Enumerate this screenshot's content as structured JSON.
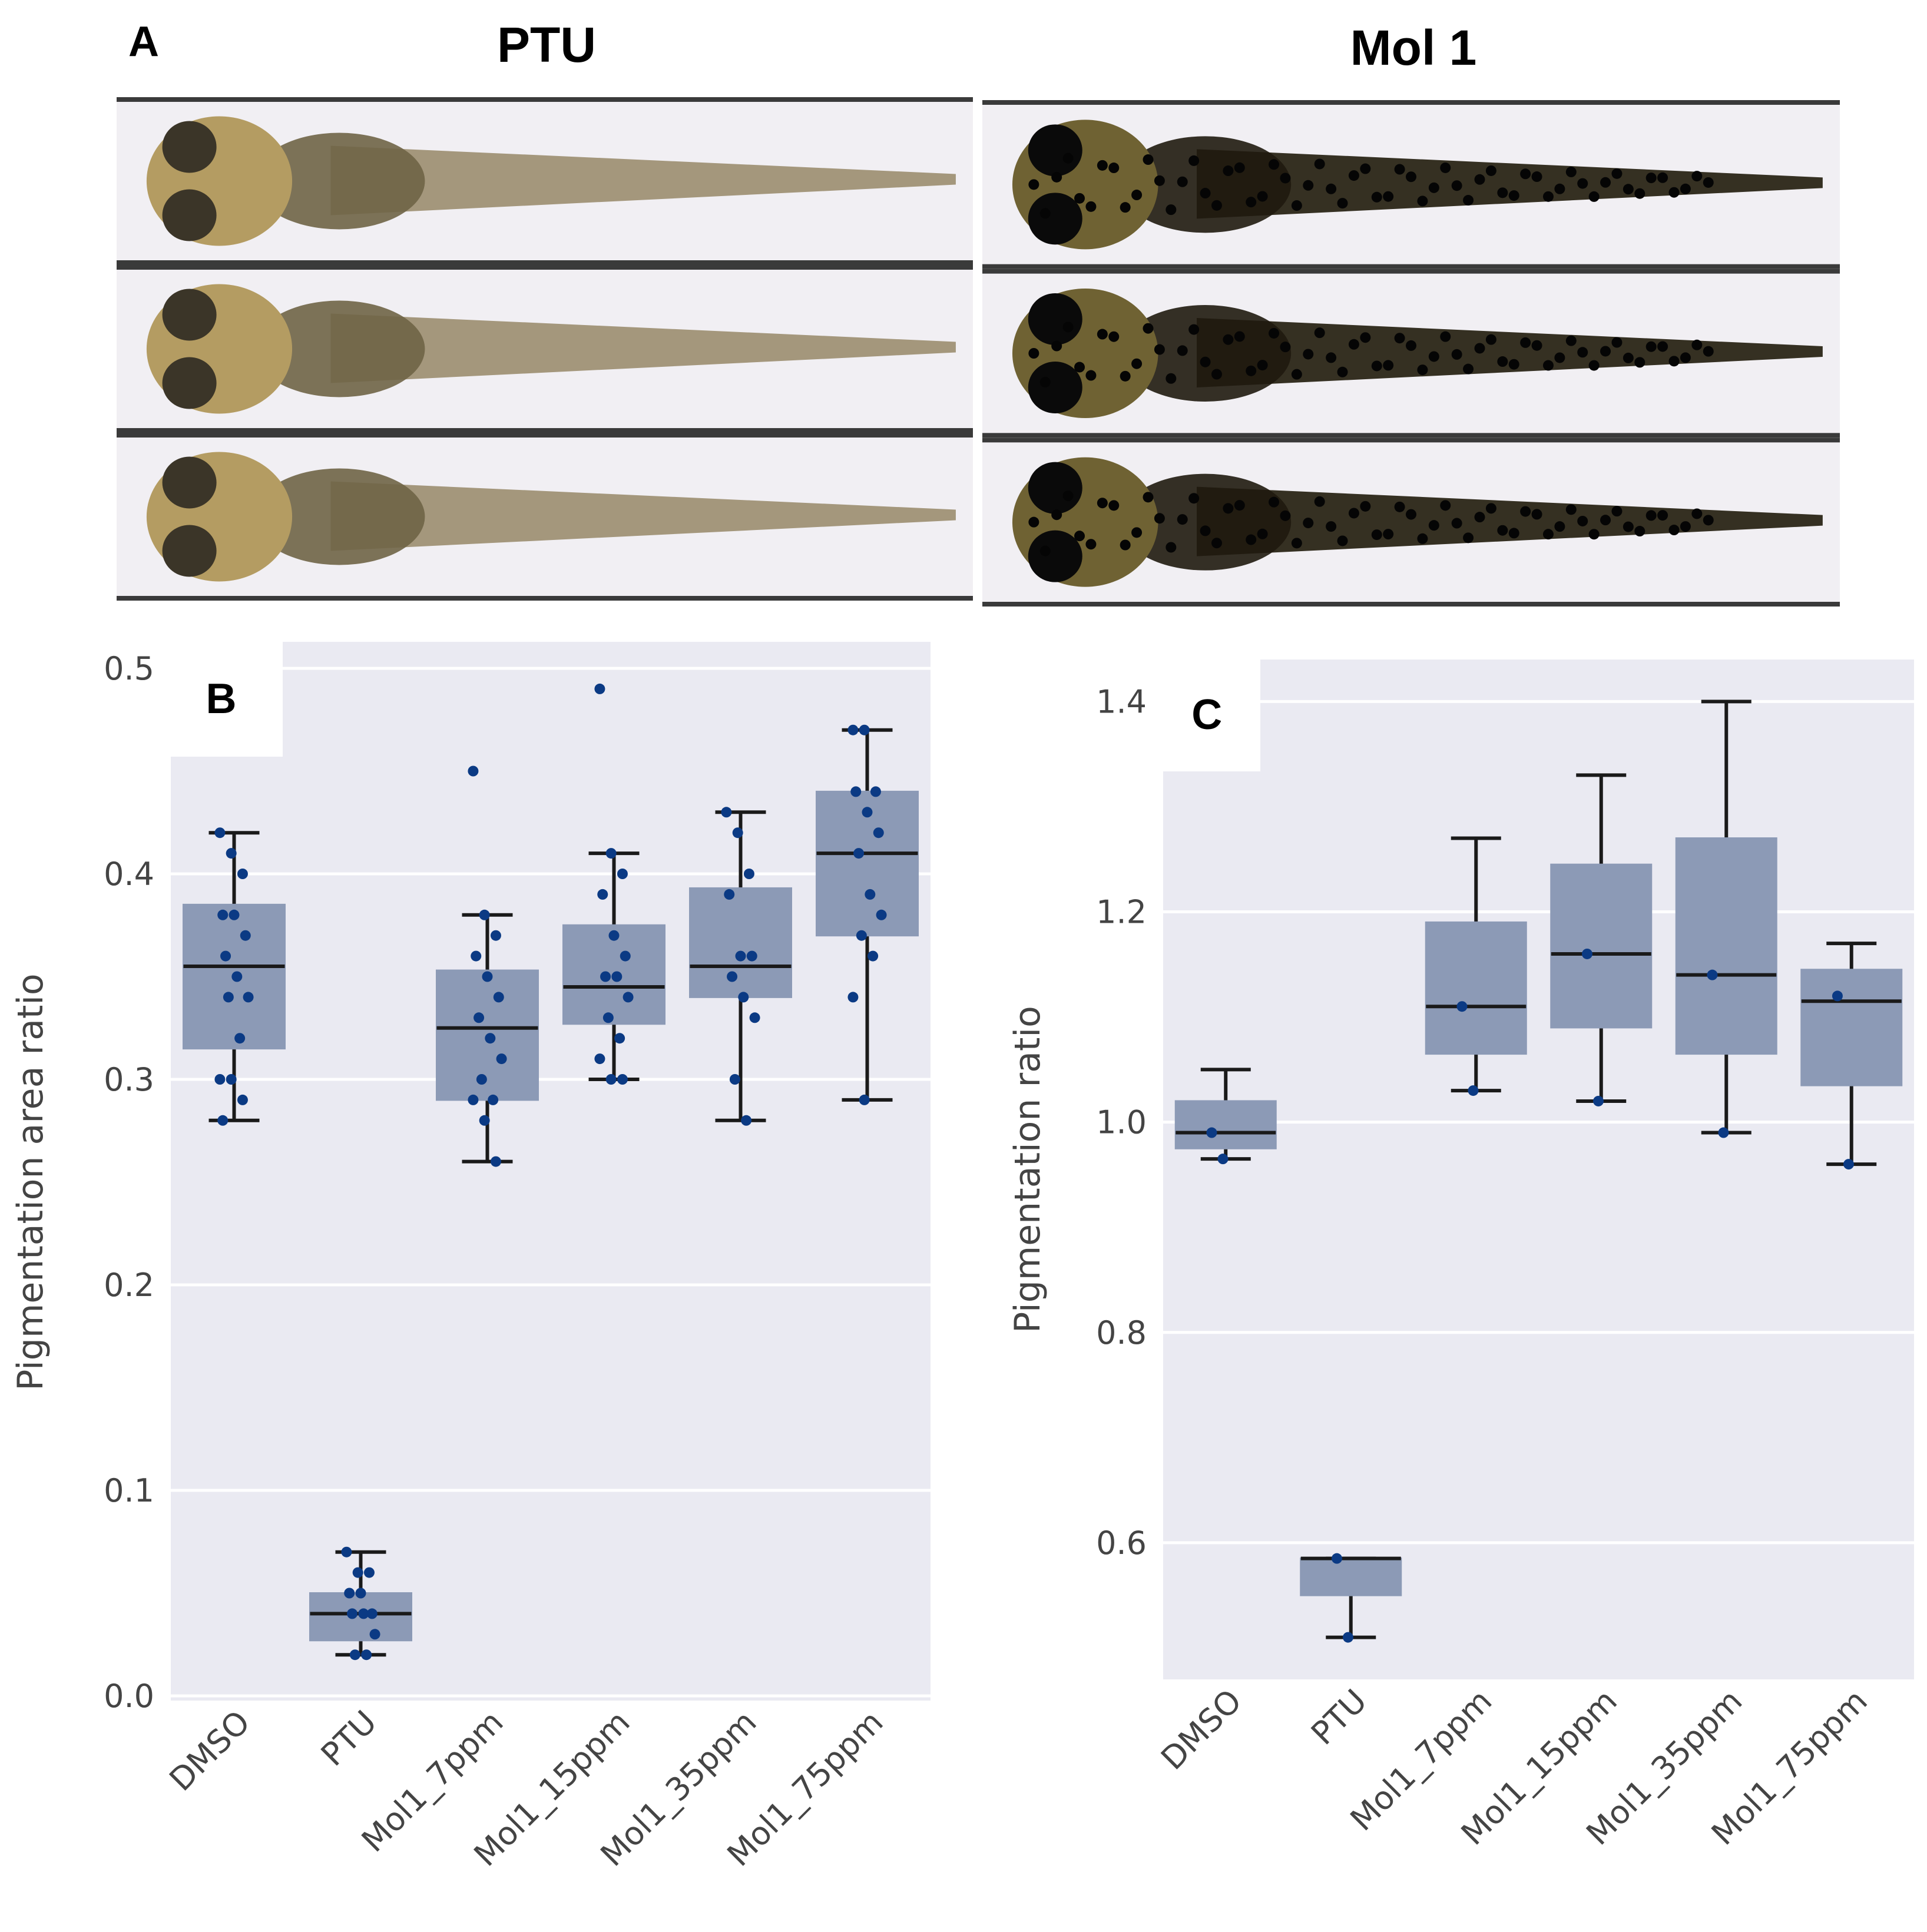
{
  "panel_a": {
    "letter": "A",
    "groups": [
      {
        "title": "PTU",
        "pigmentation": "light"
      },
      {
        "title": "Mol 1",
        "pigmentation": "dark"
      }
    ]
  },
  "chart_data": [
    {
      "type": "box",
      "panel": "B",
      "ylabel": "Pigmentation area ratio",
      "ylim": [
        0.0,
        0.5
      ],
      "yticks": [
        "0.0",
        "0.1",
        "0.2",
        "0.3",
        "0.4",
        "0.5"
      ],
      "categories": [
        "DMSO",
        "PTU",
        "Mol1_7ppm",
        "Mol1_15ppm",
        "Mol1_35ppm",
        "Mol1_75ppm"
      ],
      "boxes": [
        {
          "whislo": 0.28,
          "q1": 0.315,
          "med": 0.355,
          "q3": 0.385,
          "whishi": 0.42,
          "points": [
            0.42,
            0.41,
            0.4,
            0.38,
            0.38,
            0.37,
            0.36,
            0.35,
            0.34,
            0.34,
            0.32,
            0.3,
            0.3,
            0.29,
            0.28
          ]
        },
        {
          "whislo": 0.02,
          "q1": 0.027,
          "med": 0.04,
          "q3": 0.05,
          "whishi": 0.07,
          "points": [
            0.07,
            0.06,
            0.06,
            0.05,
            0.05,
            0.04,
            0.04,
            0.04,
            0.03,
            0.02,
            0.02
          ]
        },
        {
          "whislo": 0.26,
          "q1": 0.29,
          "med": 0.325,
          "q3": 0.353,
          "whishi": 0.38,
          "points": [
            0.45,
            0.38,
            0.37,
            0.36,
            0.35,
            0.34,
            0.33,
            0.32,
            0.31,
            0.3,
            0.29,
            0.29,
            0.28,
            0.26
          ]
        },
        {
          "whislo": 0.3,
          "q1": 0.327,
          "med": 0.345,
          "q3": 0.375,
          "whishi": 0.41,
          "points": [
            0.49,
            0.41,
            0.4,
            0.39,
            0.37,
            0.36,
            0.35,
            0.35,
            0.34,
            0.33,
            0.32,
            0.31,
            0.3,
            0.3
          ]
        },
        {
          "whislo": 0.28,
          "q1": 0.34,
          "med": 0.355,
          "q3": 0.393,
          "whishi": 0.43,
          "points": [
            0.43,
            0.42,
            0.4,
            0.39,
            0.36,
            0.36,
            0.35,
            0.34,
            0.33,
            0.3,
            0.28
          ]
        },
        {
          "whislo": 0.29,
          "q1": 0.37,
          "med": 0.41,
          "q3": 0.44,
          "whishi": 0.47,
          "points": [
            0.47,
            0.47,
            0.44,
            0.44,
            0.43,
            0.42,
            0.41,
            0.39,
            0.38,
            0.37,
            0.36,
            0.34,
            0.29
          ]
        }
      ]
    },
    {
      "type": "box",
      "panel": "C",
      "ylabel": "Pigmentation ratio",
      "ylim": [
        0.47,
        1.44
      ],
      "yticks": [
        "0.6",
        "0.8",
        "1.0",
        "1.2",
        "1.4"
      ],
      "categories": [
        "DMSO",
        "PTU",
        "Mol1_7ppm",
        "Mol1_15ppm",
        "Mol1_35ppm",
        "Mol1_75ppm"
      ],
      "boxes": [
        {
          "whislo": 0.965,
          "q1": 0.975,
          "med": 0.99,
          "q3": 1.02,
          "whishi": 1.05,
          "points": [
            0.99,
            0.965
          ]
        },
        {
          "whislo": 0.51,
          "q1": 0.55,
          "med": 0.585,
          "q3": 0.585,
          "whishi": 0.585,
          "points": [
            0.585,
            0.51
          ]
        },
        {
          "whislo": 1.03,
          "q1": 1.065,
          "med": 1.11,
          "q3": 1.19,
          "whishi": 1.27,
          "points": [
            1.11,
            1.03
          ]
        },
        {
          "whislo": 1.02,
          "q1": 1.09,
          "med": 1.16,
          "q3": 1.245,
          "whishi": 1.33,
          "points": [
            1.16,
            1.02
          ]
        },
        {
          "whislo": 0.99,
          "q1": 1.065,
          "med": 1.14,
          "q3": 1.27,
          "whishi": 1.4,
          "points": [
            1.14,
            0.99
          ]
        },
        {
          "whislo": 0.96,
          "q1": 1.035,
          "med": 1.115,
          "q3": 1.145,
          "whishi": 1.17,
          "points": [
            1.12,
            0.96
          ]
        }
      ]
    }
  ],
  "colors": {
    "axes_bg": "#eaeaf2",
    "grid": "#ffffff",
    "box_fill": "#8c9ab6",
    "line": "#1a1a1a",
    "point": "#0b3a84",
    "larva_light_head": "#b49c62",
    "larva_light_body": "#8a7a54",
    "larva_dark_body": "#2a2516",
    "tube_bg": "#f1eff3"
  }
}
